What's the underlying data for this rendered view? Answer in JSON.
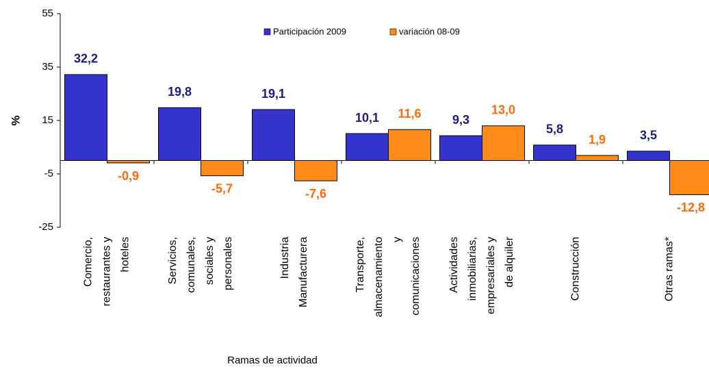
{
  "chart_data": {
    "type": "bar",
    "y_label": "%",
    "x_label": "Ramas de actividad",
    "categories": [
      [
        "Comercio,",
        "restaurantes y",
        "hoteles"
      ],
      [
        "Servicios,",
        "comunales,",
        "sociales y",
        "personales"
      ],
      [
        "Industria",
        "Manufacturera"
      ],
      [
        "Transporte,",
        "almacenamiento",
        "y",
        "comunicaciones"
      ],
      [
        "Actividades",
        "inmobiliarias,",
        "empresariales y",
        "de alquiler"
      ],
      [
        "Construcción"
      ],
      [
        "Otras ramas*"
      ]
    ],
    "series": [
      {
        "name": "Participación 2009",
        "color": "#3434cc",
        "label_color": "#1c1c7c",
        "values": [
          32.2,
          19.8,
          19.1,
          10.1,
          9.3,
          5.8,
          3.5
        ],
        "value_labels": [
          "32,2",
          "19,8",
          "19,1",
          "10,1",
          "9,3",
          "5,8",
          "3,5"
        ]
      },
      {
        "name": "variación 08-09",
        "color": "#ff8c1a",
        "label_color": "#ff6a10",
        "values": [
          -0.9,
          -5.7,
          -7.6,
          11.6,
          13.0,
          1.9,
          -12.8
        ],
        "value_labels": [
          "-0,9",
          "-5,7",
          "-7,6",
          "11,6",
          "13,0",
          "1,9",
          "-12,8"
        ]
      }
    ],
    "ylim": [
      -25,
      55
    ],
    "yticks": [
      -25,
      -5,
      15,
      35,
      55
    ],
    "grid": false
  }
}
